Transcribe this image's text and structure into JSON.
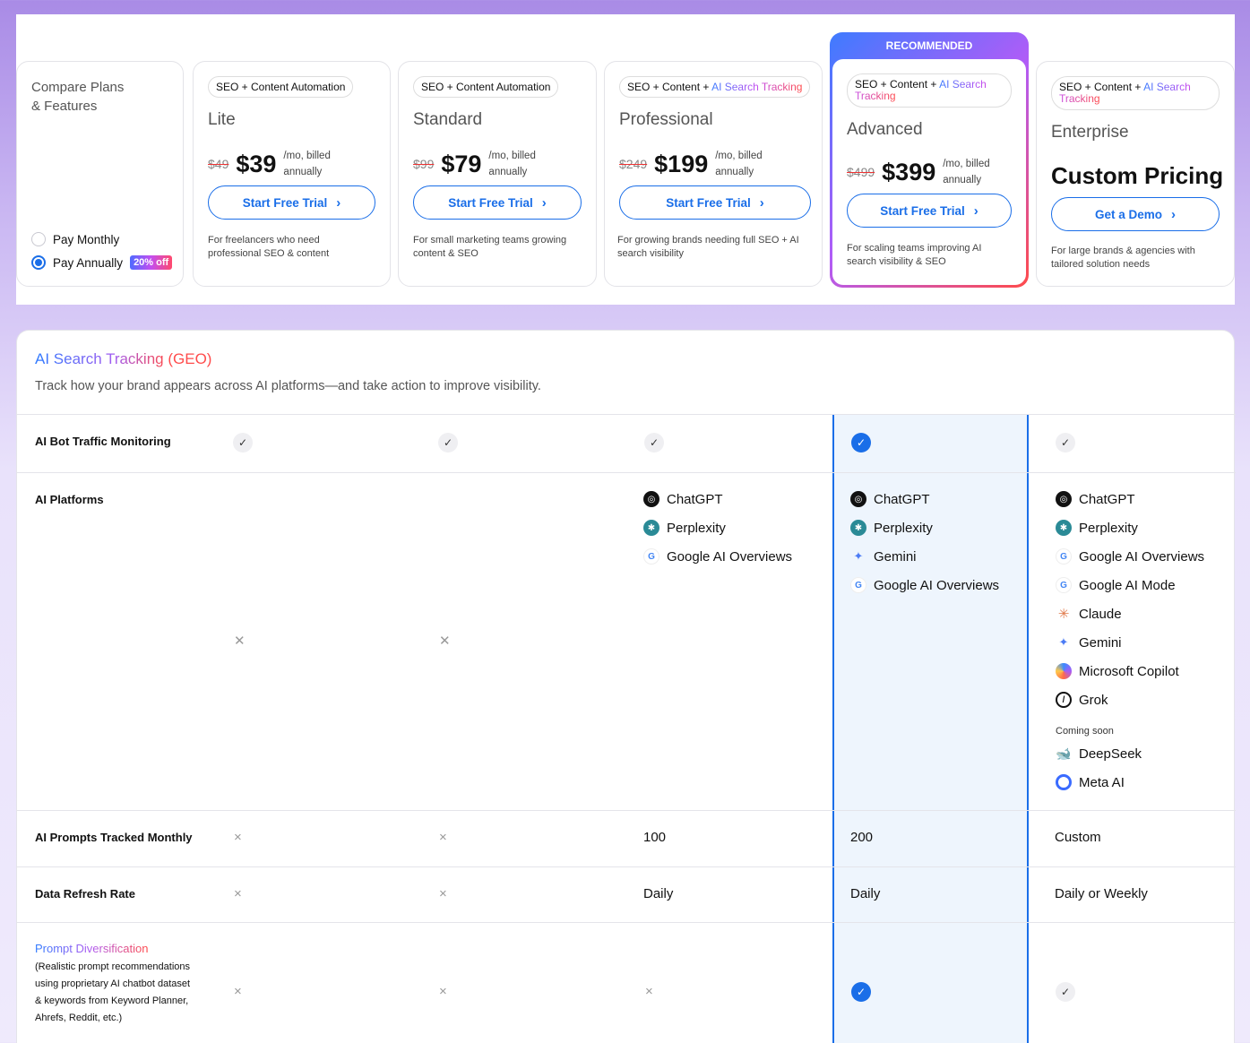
{
  "compare": {
    "title_line1": "Compare Plans",
    "title_line2": "& Features",
    "pay_monthly": "Pay Monthly",
    "pay_annually": "Pay Annually",
    "discount_badge": "20% off",
    "selected_billing": "Pay Annually"
  },
  "recommended_label": "RECOMMENDED",
  "plans": [
    {
      "tag": "SEO + Content Automation",
      "tag_grad": "",
      "name": "Lite",
      "old_price": "$49",
      "price": "$39",
      "per_line1": "/mo, billed",
      "per_line2": "annually",
      "cta": "Start Free Trial",
      "desc_line1": "For freelancers who need",
      "desc_line2": "professional SEO & content"
    },
    {
      "tag": "SEO + Content Automation",
      "tag_grad": "",
      "name": "Standard",
      "old_price": "$99",
      "price": "$79",
      "per_line1": "/mo, billed",
      "per_line2": "annually",
      "cta": "Start Free Trial",
      "desc_line1": "For small marketing teams growing",
      "desc_line2": "content & SEO"
    },
    {
      "tag": "SEO + Content + ",
      "tag_grad": "AI Search Tracking",
      "name": "Professional",
      "old_price": "$249",
      "price": "$199",
      "per_line1": "/mo, billed",
      "per_line2": "annually",
      "cta": "Start Free Trial",
      "desc_line1": "For growing brands needing full SEO + AI",
      "desc_line2": "search visibility"
    },
    {
      "tag": "SEO + Content + ",
      "tag_grad": "AI Search Tracking",
      "name": "Advanced",
      "old_price": "$499",
      "price": "$399",
      "per_line1": "/mo, billed",
      "per_line2": "annually",
      "cta": "Start Free Trial",
      "desc_line1": "For scaling teams improving AI",
      "desc_line2": "search visibility & SEO"
    },
    {
      "tag": "SEO + Content + ",
      "tag_grad": "AI Search Tracking",
      "name": "Enterprise",
      "price": "Custom Pricing",
      "cta": "Get a Demo",
      "desc_line1": "For large brands & agencies with",
      "desc_line2": "tailored solution needs"
    }
  ],
  "section": {
    "title": "AI Search Tracking (GEO)",
    "subtitle": "Track how your brand appears across AI platforms—and take action to improve visibility."
  },
  "rows": {
    "bot_traffic": {
      "label": "AI Bot Traffic Monitoring",
      "values": [
        "check",
        "check",
        "check",
        "check-blue",
        "check"
      ]
    },
    "platforms": {
      "label": "AI Platforms",
      "professional": [
        "ChatGPT",
        "Perplexity",
        "Google AI Overviews"
      ],
      "advanced": [
        "ChatGPT",
        "Perplexity",
        "Gemini",
        "Google AI Overviews"
      ],
      "enterprise": [
        "ChatGPT",
        "Perplexity",
        "Google AI Overviews",
        "Google AI Mode",
        "Claude",
        "Gemini",
        "Microsoft Copilot",
        "Grok"
      ],
      "coming_soon_label": "Coming soon",
      "coming_soon": [
        "DeepSeek",
        "Meta AI"
      ]
    },
    "prompts": {
      "label": "AI Prompts Tracked Monthly",
      "values": [
        "×",
        "×",
        "100",
        "200",
        "Custom"
      ]
    },
    "refresh": {
      "label": "Data Refresh Rate",
      "values": [
        "×",
        "×",
        "Daily",
        "Daily",
        "Daily or Weekly"
      ]
    },
    "diversification": {
      "title": "Prompt Diversification",
      "desc": "(Realistic prompt recommendations using proprietary AI chatbot dataset & keywords from Keyword Planner, Ahrefs, Reddit, etc.)",
      "values": [
        "×",
        "×",
        "×",
        "check-blue",
        "check"
      ]
    }
  },
  "icons": {
    "check": "check-icon",
    "cross": "cross-icon",
    "chevron": "chevron-right-icon"
  },
  "colors": {
    "accent": "#1a6ee8",
    "recommended_bg": "#eef5fd"
  }
}
